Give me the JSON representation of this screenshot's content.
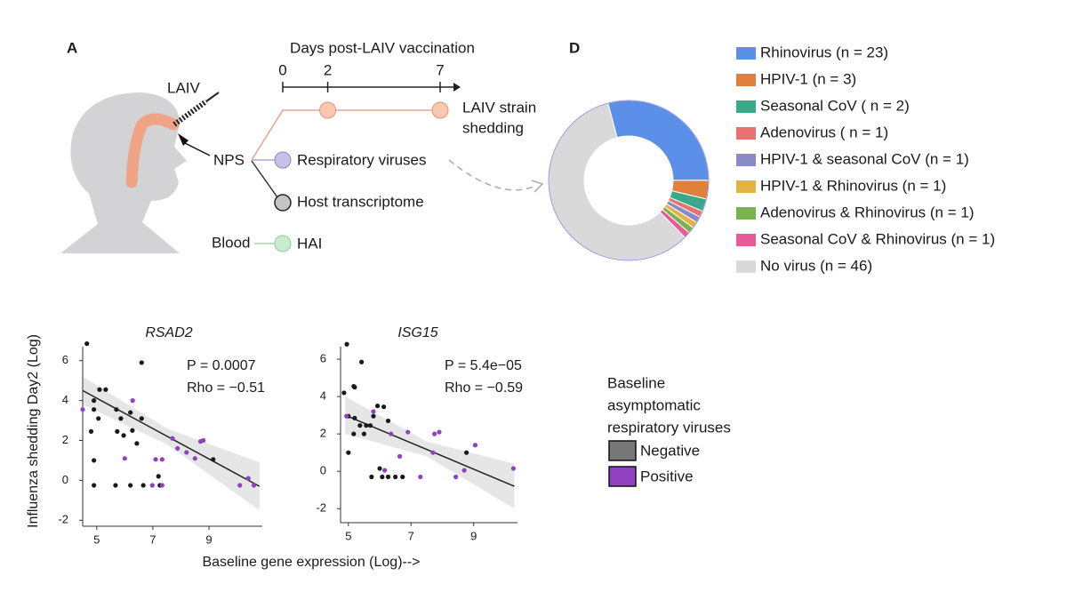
{
  "diagram": {
    "panel": "A",
    "syringe_label": "LAIV",
    "timeline_title": "Days post-LAIV vaccination",
    "timeline_ticks": [
      0,
      2,
      7
    ],
    "shedding_label": [
      "LAIV strain",
      "shedding"
    ],
    "sample_label": "NPS",
    "branch_labels": [
      "Respiratory viruses",
      "Host transcriptome"
    ],
    "blood_label": "Blood",
    "blood_assay": "HAI"
  },
  "chart_data": [
    {
      "type": "scatter",
      "title": "RSAD2",
      "ylabel": "Influenza shedding Day2 (Log)",
      "xlabel": "Baseline gene expression (Log)-->",
      "annotations": [
        "P = 0.0007",
        "Rho = −0.51"
      ],
      "xlim": [
        4.5,
        10.9
      ],
      "xticks": [
        5,
        7,
        9
      ],
      "ylim": [
        -2.3,
        6.7
      ],
      "yticks": [
        -2,
        0,
        2,
        4,
        6
      ],
      "series": [
        {
          "name": "Negative",
          "color": "#1a1a1a",
          "x": [
            4.65,
            6.6,
            5.1,
            5.32,
            4.9,
            4.9,
            5.06,
            4.8,
            4.9,
            4.9,
            5.7,
            6.2,
            5.86,
            5.73,
            5.96,
            6.27,
            6.6,
            6.43,
            5.67,
            6.2,
            6.66,
            7.2,
            7.25,
            9.15
          ],
          "values": [
            6.85,
            5.9,
            4.55,
            4.55,
            4.0,
            3.55,
            3.1,
            2.45,
            1.0,
            -0.25,
            3.55,
            3.4,
            3.1,
            2.45,
            2.25,
            2.5,
            3.1,
            1.85,
            -0.25,
            -0.25,
            -0.25,
            0.2,
            -0.25,
            1.05
          ]
        },
        {
          "name": "Positive",
          "color": "#9040c0",
          "x": [
            4.5,
            6.28,
            6.0,
            7.1,
            7.33,
            7.7,
            7.88,
            8.2,
            8.8,
            8.7,
            6.98,
            7.33,
            8.5,
            10.1,
            10.6,
            10.4
          ],
          "values": [
            3.55,
            4.0,
            1.1,
            1.05,
            1.05,
            2.1,
            1.6,
            1.4,
            2.0,
            1.95,
            -0.25,
            -0.25,
            1.1,
            -0.25,
            -0.25,
            0.1
          ]
        }
      ],
      "fit": {
        "x": [
          4.5,
          10.8
        ],
        "y": [
          4.5,
          -0.3
        ]
      },
      "ci": {
        "x": [
          4.5,
          7.5,
          10.8
        ],
        "upper": [
          5.2,
          2.6,
          0.9
        ],
        "lower": [
          3.8,
          1.8,
          -1.5
        ]
      }
    },
    {
      "type": "scatter",
      "title": "ISG15",
      "annotations": [
        "P = 5.4e−05",
        "Rho = −0.59"
      ],
      "xlim": [
        4.75,
        10.4
      ],
      "xticks": [
        5,
        7,
        9
      ],
      "ylim": [
        -2.75,
        6.67
      ],
      "yticks": [
        -2,
        0,
        2,
        4,
        6
      ],
      "series": [
        {
          "color": "#1a1a1a",
          "x": [
            4.95,
            5.42,
            4.86,
            5.17,
            5.2,
            5.0,
            5.2,
            5.37,
            5.57,
            5.17,
            5.5,
            5.7,
            5.93,
            6.13,
            5.8,
            6.27,
            5.0,
            6.0,
            5.74,
            6.08,
            6.27,
            6.5,
            6.73,
            8.77
          ],
          "values": [
            6.8,
            5.85,
            4.2,
            4.55,
            4.5,
            2.95,
            2.85,
            2.45,
            2.45,
            2.0,
            2.0,
            2.45,
            3.5,
            3.45,
            2.95,
            2.7,
            1.0,
            0.15,
            -0.3,
            -0.3,
            -0.3,
            -0.3,
            -0.3,
            1.0
          ]
        },
        {
          "color": "#9040c0",
          "x": [
            4.94,
            5.8,
            6.36,
            6.16,
            6.64,
            6.9,
            7.3,
            7.7,
            7.75,
            7.9,
            8.43,
            8.7,
            9.05,
            10.27
          ],
          "values": [
            2.95,
            3.2,
            2.0,
            0.05,
            0.8,
            2.1,
            -0.3,
            1.0,
            2.0,
            2.1,
            -0.3,
            0.05,
            1.4,
            0.15
          ]
        }
      ],
      "fit": {
        "x": [
          4.9,
          10.3
        ],
        "y": [
          3.0,
          -0.8
        ]
      },
      "ci": {
        "x": [
          4.9,
          7.5,
          10.3
        ],
        "upper": [
          4.0,
          1.6,
          0.4
        ],
        "lower": [
          2.0,
          0.8,
          -2.0
        ]
      }
    },
    {
      "type": "pie",
      "panel": "D",
      "legend_title": [
        "Baseline",
        "asymptomatic",
        "respiratory viruses"
      ],
      "categories": [
        "Rhinovirus (n = 23)",
        "HPIV-1 (n = 3)",
        "Seasonal CoV ( n = 2)",
        "Adenovirus ( n = 1)",
        "HPIV-1 & seasonal CoV (n = 1)",
        "HPIV-1 & Rhinovirus (n = 1)",
        "Adenovirus & Rhinovirus (n = 1)",
        "Seasonal CoV & Rhinovirus (n = 1)",
        "No virus (n = 46)"
      ],
      "values": [
        23,
        3,
        2,
        1,
        1,
        1,
        1,
        1,
        46
      ],
      "colors": [
        "#5b8fe8",
        "#e0803f",
        "#3aa98a",
        "#e87272",
        "#8a8ac8",
        "#e2b444",
        "#7ab250",
        "#e85a9a",
        "#d9d9d9"
      ]
    }
  ]
}
